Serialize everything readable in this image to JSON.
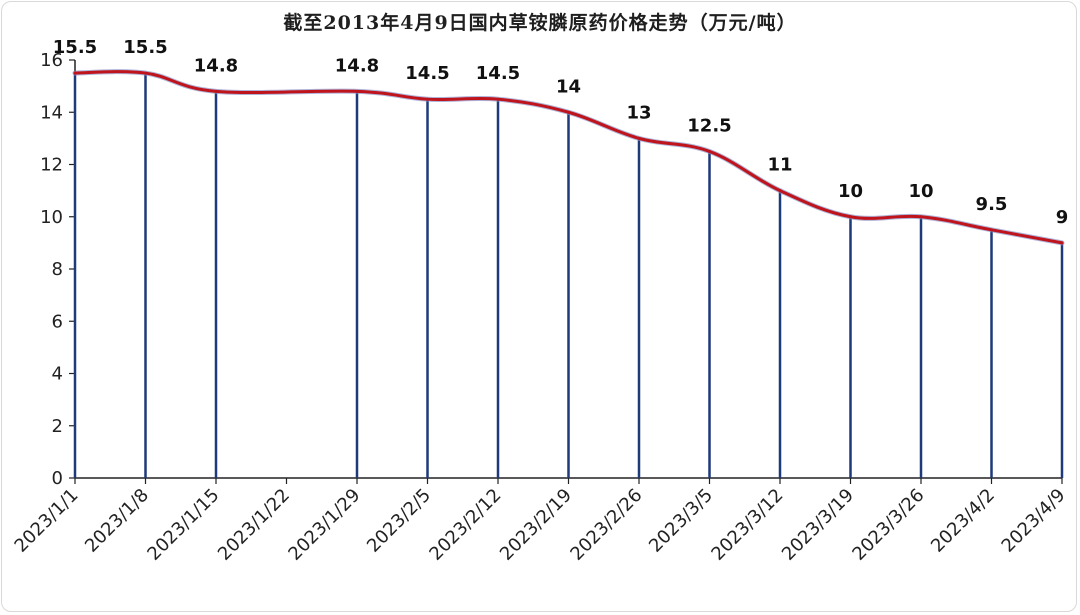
{
  "chart_data": {
    "type": "line",
    "title": "截至2013年4月9日国内草铵膦原药价格走势（万元/吨）",
    "categories": [
      "2023/1/1",
      "2023/1/8",
      "2023/1/15",
      "2023/1/22",
      "2023/1/29",
      "2023/2/5",
      "2023/2/12",
      "2023/2/19",
      "2023/2/26",
      "2023/3/5",
      "2023/3/12",
      "2023/3/19",
      "2023/3/26",
      "2023/4/2",
      "2023/4/9"
    ],
    "points": [
      {
        "x": "2023/1/1",
        "y": 15.5,
        "label": "15.5"
      },
      {
        "x": "2023/1/8",
        "y": 15.5,
        "label": "15.5"
      },
      {
        "x": "2023/1/15",
        "y": 14.8,
        "label": "14.8"
      },
      {
        "x": "2023/1/29",
        "y": 14.8,
        "label": "14.8"
      },
      {
        "x": "2023/2/5",
        "y": 14.5,
        "label": "14.5"
      },
      {
        "x": "2023/2/12",
        "y": 14.5,
        "label": "14.5"
      },
      {
        "x": "2023/2/19",
        "y": 14,
        "label": "14"
      },
      {
        "x": "2023/2/26",
        "y": 13,
        "label": "13"
      },
      {
        "x": "2023/3/5",
        "y": 12.5,
        "label": "12.5"
      },
      {
        "x": "2023/3/12",
        "y": 11,
        "label": "11"
      },
      {
        "x": "2023/3/19",
        "y": 10,
        "label": "10"
      },
      {
        "x": "2023/3/26",
        "y": 10,
        "label": "10"
      },
      {
        "x": "2023/4/2",
        "y": 9.5,
        "label": "9.5"
      },
      {
        "x": "2023/4/9",
        "y": 9,
        "label": "9"
      }
    ],
    "ylim": [
      0,
      16
    ],
    "yticks": [
      0,
      2,
      4,
      6,
      8,
      10,
      12,
      14,
      16
    ],
    "grid": false,
    "colors": {
      "line": "#c0141c",
      "drop_line": "#1f3a7a",
      "axis": "#222222"
    }
  }
}
